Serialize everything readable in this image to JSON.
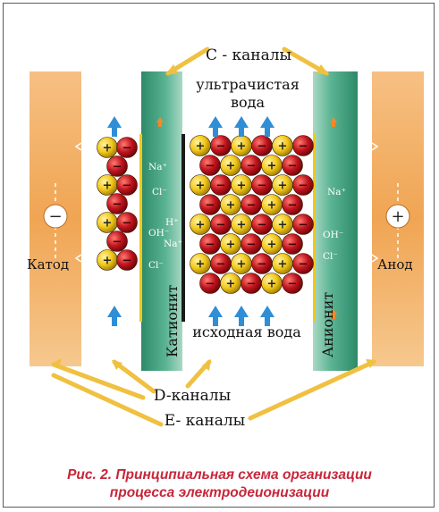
{
  "labels": {
    "c_channels": "С - каналы",
    "ultrapure_water_line1": "ультрачистая",
    "ultrapure_water_line2": "вода",
    "source_water": "исходная вода",
    "cathode": "Катод",
    "anode": "Анод",
    "cation_membrane": "Катионит",
    "anion_membrane": "Анионит",
    "d_channels": "D-каналы",
    "e_channels": "E- каналы",
    "minus_sign": "−",
    "plus_sign": "+"
  },
  "ions": {
    "na_left": "Na⁺",
    "cl_left": "Cl⁻",
    "h_mid": "H⁺",
    "oh_mid": "OH⁻",
    "na_mid": "Na⁺",
    "cl_mid": "Cl⁻",
    "na_right": "Na⁺",
    "oh_right": "OH⁻",
    "cl_right": "Cl⁻"
  },
  "caption": {
    "line1": "Рис. 2. Принципиальная схема организации",
    "line2": "процесса электродеионизации"
  },
  "colors": {
    "electrode_orange": "#f0a050",
    "channel_green": "#3f9f7e",
    "bead_red": "#c0141e",
    "bead_yellow": "#f2c81a",
    "arrow_blue": "#2f8ed6",
    "arrow_yellow": "#f0c040",
    "caption_red": "#c8263a"
  }
}
